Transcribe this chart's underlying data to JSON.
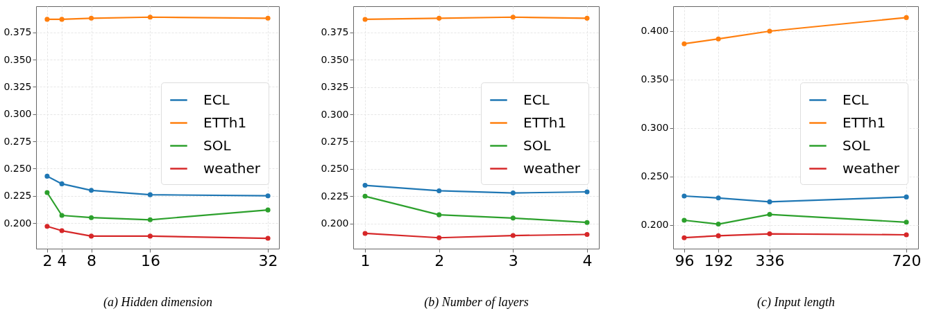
{
  "chart_data": [
    {
      "type": "line",
      "xlabel": "(a) Hidden dimension",
      "x": [
        2,
        4,
        8,
        16,
        32
      ],
      "xlim": [
        0.5,
        33.5
      ],
      "xticks": [
        2,
        4,
        8,
        16,
        32
      ],
      "ylim": [
        0.1765,
        0.399
      ],
      "yticks": [
        {
          "value": 0.2,
          "label": "0.200"
        },
        0.225,
        {
          "value": 0.25,
          "label": "0.250"
        },
        0.275,
        {
          "value": 0.3,
          "label": "0.300"
        },
        0.325,
        {
          "value": 0.35,
          "label": "0.350"
        },
        0.375
      ],
      "grid": true,
      "legend": "right",
      "marker": "circle",
      "line_style": "solid",
      "series": [
        {
          "name": "ECL",
          "color": "#1f77b4",
          "values": [
            0.243,
            0.236,
            0.23,
            0.226,
            0.225
          ]
        },
        {
          "name": "ETTh1",
          "color": "#ff7f0e",
          "values": [
            0.387,
            0.387,
            0.388,
            0.389,
            0.388
          ]
        },
        {
          "name": "SOL",
          "color": "#2ca02c",
          "values": [
            0.228,
            0.207,
            0.205,
            0.203,
            0.212
          ]
        },
        {
          "name": "weather",
          "color": "#d62728",
          "values": [
            0.197,
            0.193,
            0.188,
            0.188,
            0.186
          ]
        }
      ]
    },
    {
      "type": "line",
      "xlabel": "(b) Number of layers",
      "x": [
        1,
        2,
        3,
        4
      ],
      "xlim": [
        0.84,
        4.16
      ],
      "xticks": [
        1,
        2,
        3,
        4
      ],
      "ylim": [
        0.177,
        0.399
      ],
      "yticks": [
        {
          "value": 0.2,
          "label": "0.200"
        },
        0.225,
        {
          "value": 0.25,
          "label": "0.250"
        },
        0.275,
        {
          "value": 0.3,
          "label": "0.300"
        },
        0.325,
        {
          "value": 0.35,
          "label": "0.350"
        },
        0.375
      ],
      "grid": true,
      "legend": "right",
      "marker": "circle",
      "line_style": "solid",
      "series": [
        {
          "name": "ECL",
          "color": "#1f77b4",
          "values": [
            0.235,
            0.23,
            0.228,
            0.229
          ]
        },
        {
          "name": "ETTh1",
          "color": "#ff7f0e",
          "values": [
            0.387,
            0.388,
            0.389,
            0.388
          ]
        },
        {
          "name": "SOL",
          "color": "#2ca02c",
          "values": [
            0.225,
            0.208,
            0.205,
            0.201
          ]
        },
        {
          "name": "weather",
          "color": "#d62728",
          "values": [
            0.191,
            0.187,
            0.189,
            0.19
          ]
        }
      ]
    },
    {
      "type": "line",
      "xlabel": "(c) Input length",
      "x": [
        96,
        192,
        336,
        720
      ],
      "xlim": [
        65,
        753
      ],
      "xticks": [
        96,
        192,
        336,
        720
      ],
      "ylim": [
        0.1757,
        0.4257
      ],
      "yticks": [
        {
          "value": 0.2,
          "label": "0.200"
        },
        {
          "value": 0.25,
          "label": "0.250"
        },
        {
          "value": 0.3,
          "label": "0.300"
        },
        {
          "value": 0.35,
          "label": "0.350"
        },
        {
          "value": 0.4,
          "label": "0.400"
        }
      ],
      "grid": true,
      "legend": "right",
      "marker": "circle",
      "line_style": "solid",
      "series": [
        {
          "name": "ECL",
          "color": "#1f77b4",
          "values": [
            0.23,
            0.228,
            0.224,
            0.229
          ]
        },
        {
          "name": "ETTh1",
          "color": "#ff7f0e",
          "values": [
            0.387,
            0.392,
            0.4,
            0.414
          ]
        },
        {
          "name": "SOL",
          "color": "#2ca02c",
          "values": [
            0.205,
            0.201,
            0.211,
            0.203
          ]
        },
        {
          "name": "weather",
          "color": "#d62728",
          "values": [
            0.187,
            0.189,
            0.191,
            0.19
          ]
        }
      ]
    }
  ]
}
